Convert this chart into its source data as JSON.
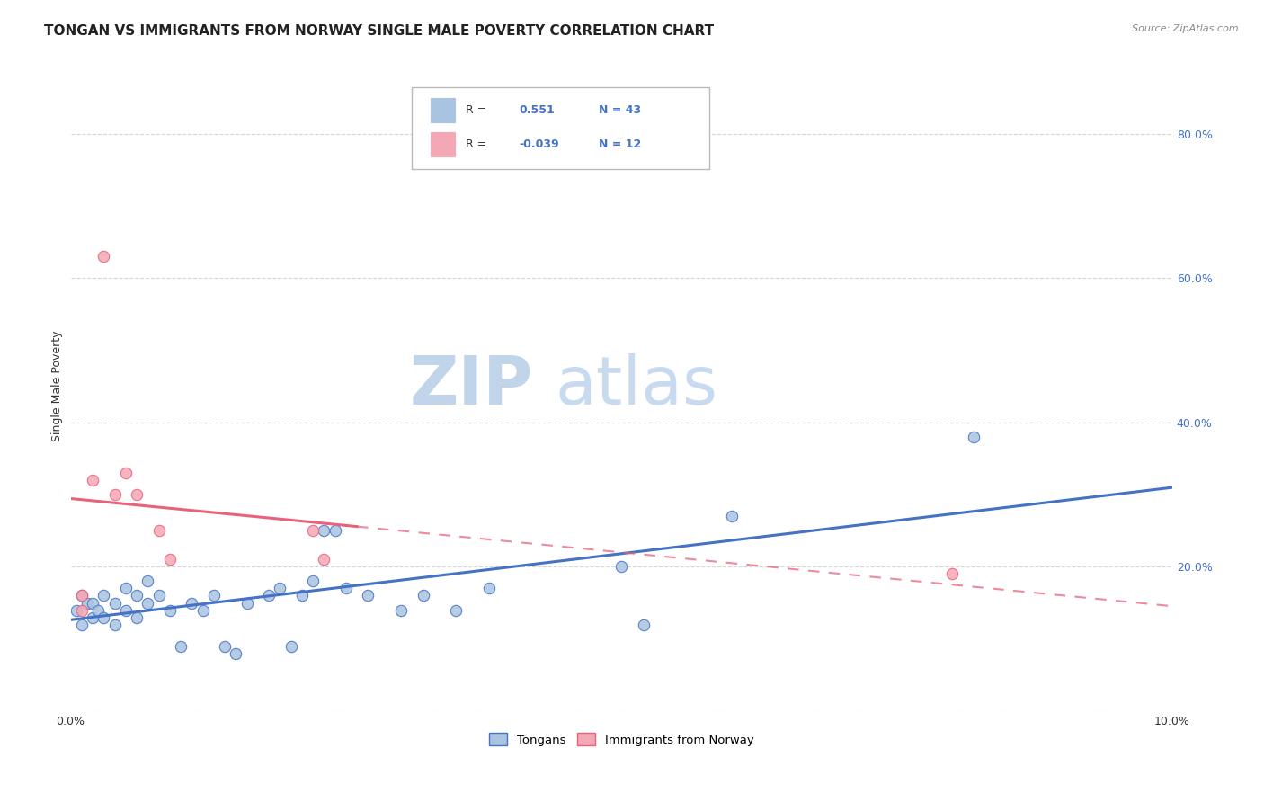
{
  "title": "TONGAN VS IMMIGRANTS FROM NORWAY SINGLE MALE POVERTY CORRELATION CHART",
  "source": "Source: ZipAtlas.com",
  "ylabel": "Single Male Poverty",
  "xlim": [
    0.0,
    0.1
  ],
  "ylim": [
    0.0,
    0.9
  ],
  "x_ticks": [
    0.0,
    0.02,
    0.04,
    0.06,
    0.08,
    0.1
  ],
  "x_tick_labels": [
    "0.0%",
    "",
    "",
    "",
    "",
    "10.0%"
  ],
  "y_ticks": [
    0.0,
    0.2,
    0.4,
    0.6,
    0.8
  ],
  "y_tick_labels": [
    "",
    "20.0%",
    "40.0%",
    "60.0%",
    "80.0%"
  ],
  "tongan_x": [
    0.0005,
    0.001,
    0.001,
    0.0015,
    0.002,
    0.002,
    0.0025,
    0.003,
    0.003,
    0.004,
    0.004,
    0.005,
    0.005,
    0.006,
    0.006,
    0.007,
    0.007,
    0.008,
    0.009,
    0.01,
    0.011,
    0.012,
    0.013,
    0.014,
    0.015,
    0.016,
    0.018,
    0.019,
    0.02,
    0.021,
    0.022,
    0.023,
    0.024,
    0.025,
    0.027,
    0.03,
    0.032,
    0.035,
    0.038,
    0.05,
    0.052,
    0.06,
    0.082
  ],
  "tongan_y": [
    0.14,
    0.12,
    0.16,
    0.15,
    0.13,
    0.15,
    0.14,
    0.13,
    0.16,
    0.12,
    0.15,
    0.17,
    0.14,
    0.16,
    0.13,
    0.18,
    0.15,
    0.16,
    0.14,
    0.09,
    0.15,
    0.14,
    0.16,
    0.09,
    0.08,
    0.15,
    0.16,
    0.17,
    0.09,
    0.16,
    0.18,
    0.25,
    0.25,
    0.17,
    0.16,
    0.14,
    0.16,
    0.14,
    0.17,
    0.2,
    0.12,
    0.27,
    0.38
  ],
  "norway_x": [
    0.001,
    0.001,
    0.002,
    0.003,
    0.004,
    0.005,
    0.006,
    0.008,
    0.009,
    0.022,
    0.023,
    0.08
  ],
  "norway_y": [
    0.14,
    0.16,
    0.32,
    0.63,
    0.3,
    0.33,
    0.3,
    0.25,
    0.21,
    0.25,
    0.21,
    0.19
  ],
  "tongan_color": "#a8c4e0",
  "norway_color": "#f4a7b5",
  "tongan_line_color": "#4472c4",
  "norway_line_color": "#e8637a",
  "R_tongan": 0.551,
  "N_tongan": 43,
  "R_norway": -0.039,
  "N_norway": 12,
  "background_color": "#ffffff",
  "grid_color": "#cccccc",
  "title_fontsize": 11,
  "label_fontsize": 9,
  "tick_fontsize": 9,
  "scatter_size": 80,
  "watermark_zip_color": "#c8d8ec",
  "watermark_atlas_color": "#c8d8ec",
  "watermark_fontsize": 54
}
